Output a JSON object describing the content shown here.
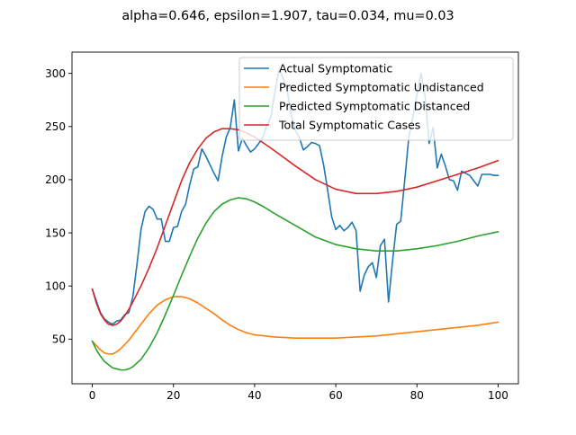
{
  "chart_data": {
    "type": "line",
    "title": "alpha=0.646, epsilon=1.907, tau=0.034, mu=0.03",
    "xlabel": "",
    "ylabel": "",
    "xlim": [
      -5,
      105
    ],
    "ylim": [
      8,
      320
    ],
    "x_ticks": [
      0,
      20,
      40,
      60,
      80,
      100
    ],
    "y_ticks": [
      50,
      100,
      150,
      200,
      250,
      300
    ],
    "grid": false,
    "legend_position": "upper-right",
    "series": [
      {
        "name": "Actual Symptomatic",
        "color": "#1f77b4",
        "x": [
          0,
          1,
          2,
          3,
          4,
          5,
          6,
          7,
          8,
          9,
          10,
          11,
          12,
          13,
          14,
          15,
          16,
          17,
          18,
          19,
          20,
          21,
          22,
          23,
          24,
          25,
          26,
          27,
          28,
          29,
          30,
          31,
          32,
          33,
          34,
          35,
          36,
          37,
          38,
          39,
          40,
          41,
          42,
          43,
          44,
          45,
          46,
          47,
          48,
          49,
          50,
          51,
          52,
          53,
          54,
          55,
          56,
          57,
          58,
          59,
          60,
          61,
          62,
          63,
          64,
          65,
          66,
          67,
          68,
          69,
          70,
          71,
          72,
          73,
          74,
          75,
          76,
          77,
          78,
          79,
          80,
          81,
          82,
          83,
          84,
          85,
          86,
          87,
          88,
          89,
          90,
          91,
          92,
          93,
          94,
          95,
          96,
          97,
          98,
          99,
          100
        ],
        "values": [
          97,
          86,
          75,
          69,
          66,
          64,
          67,
          68,
          73,
          75,
          90,
          120,
          153,
          170,
          175,
          172,
          163,
          163,
          142,
          142,
          155,
          156,
          170,
          177,
          195,
          210,
          212,
          229,
          222,
          214,
          206,
          199,
          222,
          240,
          249,
          275,
          227,
          239,
          232,
          226,
          229,
          234,
          240,
          251,
          259,
          282,
          304,
          296,
          285,
          261,
          247,
          240,
          228,
          231,
          235,
          234,
          232,
          214,
          190,
          165,
          153,
          157,
          152,
          155,
          160,
          152,
          95,
          110,
          118,
          122,
          108,
          138,
          144,
          85,
          124,
          158,
          161,
          200,
          240,
          259,
          280,
          300,
          279,
          234,
          249,
          211,
          224,
          213,
          200,
          199,
          190,
          208,
          206,
          204,
          199,
          194,
          205,
          205,
          205,
          204,
          204
        ]
      },
      {
        "name": "Predicted Symptomatic Undistanced",
        "color": "#ff7f0e",
        "x": [
          0,
          1,
          2,
          3,
          4,
          5,
          6,
          7,
          8,
          9,
          10,
          12,
          14,
          16,
          18,
          20,
          22,
          24,
          26,
          28,
          30,
          32,
          34,
          36,
          38,
          40,
          45,
          50,
          55,
          60,
          65,
          70,
          75,
          80,
          85,
          90,
          95,
          100
        ],
        "values": [
          48,
          44,
          40,
          37,
          36,
          36,
          38,
          41,
          45,
          49,
          54,
          64,
          74,
          82,
          87,
          90,
          90,
          88,
          84,
          79,
          74,
          68,
          63,
          59,
          56,
          54,
          52,
          51,
          51,
          51,
          52,
          53,
          55,
          57,
          59,
          61,
          63,
          66
        ]
      },
      {
        "name": "Predicted Symptomatic Distanced",
        "color": "#2ca02c",
        "x": [
          0,
          1,
          2,
          3,
          4,
          5,
          6,
          7,
          8,
          9,
          10,
          12,
          14,
          16,
          18,
          20,
          22,
          24,
          26,
          28,
          30,
          32,
          34,
          36,
          38,
          40,
          42,
          45,
          50,
          55,
          60,
          65,
          70,
          75,
          80,
          85,
          90,
          95,
          100
        ],
        "values": [
          48,
          40,
          34,
          29,
          26,
          23,
          22,
          21,
          21,
          22,
          24,
          31,
          42,
          56,
          73,
          91,
          110,
          128,
          145,
          159,
          170,
          177,
          181,
          183,
          182,
          179,
          175,
          168,
          157,
          146,
          139,
          135,
          133,
          133,
          135,
          138,
          142,
          147,
          151
        ]
      },
      {
        "name": "Total Symptomatic Cases",
        "color": "#d62728",
        "x": [
          0,
          1,
          2,
          3,
          4,
          5,
          6,
          7,
          8,
          9,
          10,
          12,
          14,
          16,
          18,
          20,
          22,
          24,
          26,
          28,
          30,
          32,
          34,
          36,
          38,
          40,
          42,
          45,
          50,
          55,
          60,
          65,
          70,
          75,
          80,
          85,
          90,
          95,
          100
        ],
        "values": [
          97,
          84,
          74,
          68,
          64,
          63,
          64,
          67,
          72,
          78,
          85,
          100,
          117,
          136,
          157,
          178,
          199,
          216,
          229,
          239,
          245,
          248,
          248,
          247,
          244,
          240,
          235,
          227,
          213,
          200,
          191,
          187,
          187,
          189,
          193,
          199,
          205,
          211,
          218
        ]
      }
    ]
  }
}
